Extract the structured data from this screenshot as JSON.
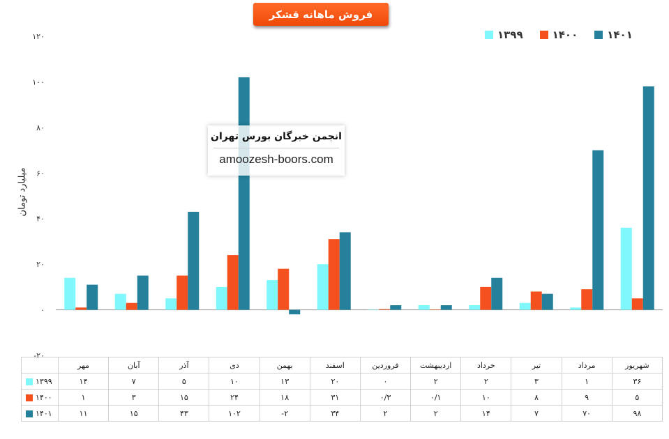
{
  "title": "فروش ماهانه قشکر",
  "y_title": "میلیارد تومان",
  "watermark": {
    "persian": "انجمن خبرگان بورس تهران",
    "latin": "amoozesh-boors.com"
  },
  "chart_data": {
    "type": "bar",
    "title": "فروش ماهانه قشکر",
    "ylabel": "میلیارد تومان",
    "ylim": [
      -20,
      120
    ],
    "y_ticks": [
      -20,
      0,
      20,
      40,
      60,
      80,
      100,
      120
    ],
    "y_tick_labels": [
      "-۲۰",
      "۰",
      "۲۰",
      "۴۰",
      "۶۰",
      "۸۰",
      "۱۰۰",
      "۱۲۰"
    ],
    "categories": [
      "مهر",
      "آبان",
      "آذر",
      "دی",
      "بهمن",
      "اسفند",
      "فروردین",
      "اردیبهشت",
      "خرداد",
      "تیر",
      "مرداد",
      "شهریور"
    ],
    "legend_position": "top-right",
    "series": [
      {
        "name": "۱۳۹۹",
        "color": "#7ff7fb",
        "values": [
          14,
          7,
          5,
          10,
          13,
          20,
          0,
          2,
          2,
          3,
          1,
          36
        ],
        "labels": [
          "۱۴",
          "۷",
          "۵",
          "۱۰",
          "۱۳",
          "۲۰",
          "۰",
          "۲",
          "۲",
          "۳",
          "۱",
          "۳۶"
        ]
      },
      {
        "name": "۱۴۰۰",
        "color": "#f4511e",
        "values": [
          1,
          3,
          15,
          24,
          18,
          31,
          0.3,
          0.1,
          10,
          8,
          9,
          5
        ],
        "labels": [
          "۱",
          "۳",
          "۱۵",
          "۲۴",
          "۱۸",
          "۳۱",
          "۰/۳",
          "۰/۱",
          "۱۰",
          "۸",
          "۹",
          "۵"
        ]
      },
      {
        "name": "۱۴۰۱",
        "color": "#25809b",
        "values": [
          11,
          15,
          43,
          102,
          -2,
          34,
          2,
          2,
          14,
          7,
          70,
          98
        ],
        "labels": [
          "۱۱",
          "۱۵",
          "۴۳",
          "۱۰۲",
          "-۲",
          "۳۴",
          "۲",
          "۲",
          "۱۴",
          "۷",
          "۷۰",
          "۹۸"
        ]
      }
    ]
  }
}
